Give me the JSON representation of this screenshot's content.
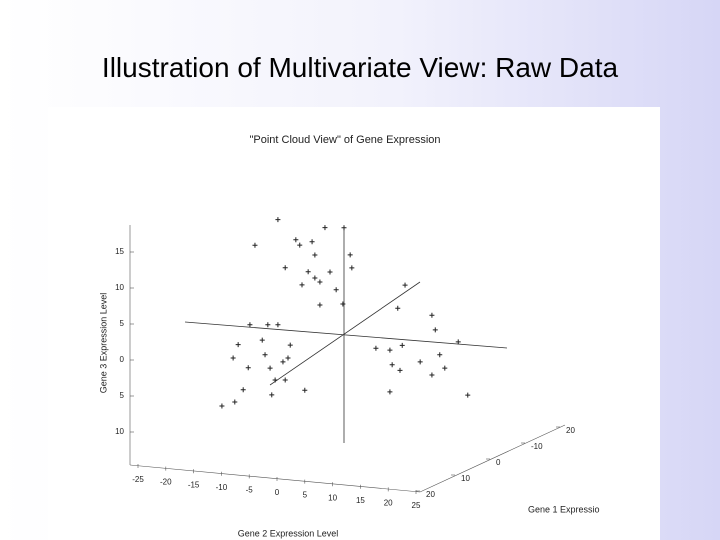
{
  "title": "Illustration of Multivariate View: Raw Data",
  "chart_data": {
    "type": "scatter3d",
    "title": "\"Point Cloud View\" of Gene Expression",
    "xlabel": "Gene 2 Expression Level",
    "ylabel": "Gene 3 Expression Level",
    "zlabel": "Gene 1 Expressio",
    "marker": "+",
    "color": "#222222",
    "x": [
      -11.8,
      -3.4,
      0,
      -8.6,
      -5.7,
      -15.9,
      -7.9,
      -5.2,
      -10.5,
      -2.5,
      1.4,
      1.1,
      -6.4,
      -5.2,
      -7.5,
      -4.3,
      -1.4,
      -0.2,
      -4.3,
      10.9,
      9.6,
      15.7,
      16.3,
      -16.8,
      -13.6,
      -11.8,
      -18.9,
      -14.6,
      -9.6,
      -14.1,
      -10.0,
      -10.9,
      -13.2,
      -19.8,
      -17.1,
      -12.3,
      -10.5,
      -18.0,
      -12.9,
      -7.0,
      -21.8,
      -19.5,
      5.7,
      8.2,
      10.4,
      8.6,
      13.6,
      15.7,
      18.0,
      17.1,
      20.4,
      10.0,
      8.2,
      22.1
    ],
    "y": [
      15.3,
      14.7,
      14.9,
      12.7,
      12.6,
      11.5,
      12.0,
      10.8,
      8.7,
      8.6,
      9.4,
      11.2,
      8.4,
      7.6,
      6.5,
      7.1,
      6.2,
      4.3,
      3.9,
      7.6,
      4.3,
      3.7,
      1.7,
      0.4,
      0.6,
      0.7,
      -2.5,
      -1.6,
      -2.0,
      -3.6,
      -3.8,
      -4.4,
      -5.4,
      -4.4,
      -5.6,
      -7.0,
      -6.9,
      -8.7,
      -9.1,
      -8.1,
      -11.2,
      -10.5,
      -1.5,
      -1.6,
      -0.8,
      -3.6,
      -2.9,
      -4.6,
      -3.5,
      -1.7,
      0.3,
      -4.3,
      -7.4,
      -7.0
    ],
    "xticks": [
      -25,
      -20,
      -15,
      -10,
      -5,
      0,
      5,
      10,
      15,
      20,
      25
    ],
    "yticks": [
      15,
      10,
      5,
      0,
      {
        "value": -5,
        "label": "5"
      },
      {
        "value": -10,
        "label": "10"
      }
    ],
    "zticks": [
      {
        "value": -20,
        "label": "20"
      },
      -10,
      0,
      10,
      20
    ]
  }
}
